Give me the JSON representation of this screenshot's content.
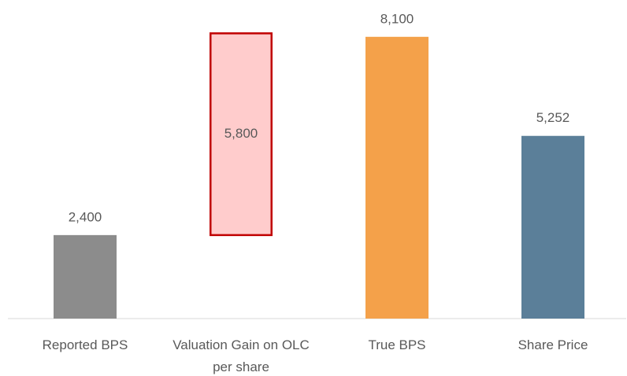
{
  "chart_data": {
    "type": "waterfall",
    "categories": [
      "Reported BPS",
      "Valuation Gain on OLC per share",
      "True BPS",
      "Share Price"
    ],
    "values": [
      2400,
      5800,
      8100,
      5252
    ],
    "value_labels": [
      "2,400",
      "5,800",
      "8,100",
      "5,252"
    ],
    "measures": [
      "absolute",
      "relative",
      "absolute",
      "absolute"
    ],
    "colors": [
      "#8c8c8c",
      "#ffcccc",
      "#f4a14a",
      "#5b7f99"
    ],
    "outlines": [
      null,
      "#c00000",
      null,
      null
    ],
    "ylim": [
      0,
      9000
    ]
  }
}
